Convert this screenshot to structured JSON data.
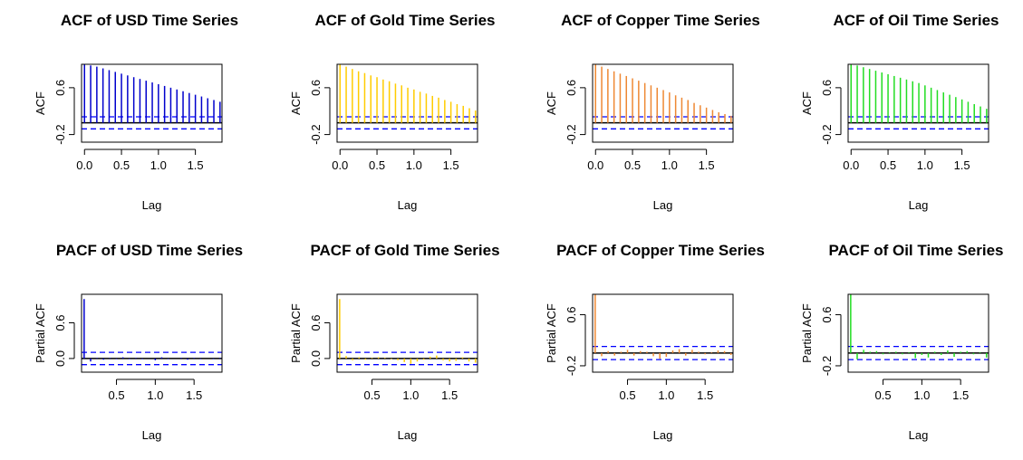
{
  "chart_data": [
    {
      "type": "bar",
      "title": "ACF of USD Time Series",
      "xlabel": "Lag",
      "ylabel": "ACF",
      "color": "#0000CC",
      "xticks": [
        "0.0",
        "0.5",
        "1.0",
        "1.5"
      ],
      "yticks": [
        "-0.2",
        "0.6"
      ],
      "xlim": [
        -0.04,
        1.86
      ],
      "ylim": [
        -0.33,
        1.0
      ],
      "ci": 0.103,
      "x": [
        0.0,
        0.0833,
        0.1667,
        0.25,
        0.3333,
        0.4167,
        0.5,
        0.5833,
        0.6667,
        0.75,
        0.8333,
        0.9167,
        1.0,
        1.0833,
        1.1667,
        1.25,
        1.3333,
        1.4167,
        1.5,
        1.5833,
        1.6667,
        1.75,
        1.8333
      ],
      "values": [
        1.0,
        0.98,
        0.96,
        0.93,
        0.9,
        0.87,
        0.84,
        0.81,
        0.78,
        0.75,
        0.72,
        0.69,
        0.66,
        0.63,
        0.6,
        0.57,
        0.54,
        0.51,
        0.48,
        0.45,
        0.42,
        0.39,
        0.36
      ]
    },
    {
      "type": "bar",
      "title": "ACF of Gold Time Series",
      "xlabel": "Lag",
      "ylabel": "ACF",
      "color": "#FFCC00",
      "xticks": [
        "0.0",
        "0.5",
        "1.0",
        "1.5"
      ],
      "yticks": [
        "-0.2",
        "0.6"
      ],
      "xlim": [
        -0.04,
        1.86
      ],
      "ylim": [
        -0.33,
        1.0
      ],
      "ci": 0.103,
      "x": [
        0.0,
        0.0833,
        0.1667,
        0.25,
        0.3333,
        0.4167,
        0.5,
        0.5833,
        0.6667,
        0.75,
        0.8333,
        0.9167,
        1.0,
        1.0833,
        1.1667,
        1.25,
        1.3333,
        1.4167,
        1.5,
        1.5833,
        1.6667,
        1.75,
        1.8333
      ],
      "values": [
        1.0,
        0.96,
        0.92,
        0.88,
        0.85,
        0.81,
        0.78,
        0.74,
        0.71,
        0.67,
        0.64,
        0.6,
        0.57,
        0.53,
        0.5,
        0.46,
        0.43,
        0.39,
        0.36,
        0.32,
        0.29,
        0.25,
        0.21
      ]
    },
    {
      "type": "bar",
      "title": "ACF of Copper Time Series",
      "xlabel": "Lag",
      "ylabel": "ACF",
      "color": "#EE8833",
      "xticks": [
        "0.0",
        "0.5",
        "1.0",
        "1.5"
      ],
      "yticks": [
        "-0.2",
        "0.6"
      ],
      "xlim": [
        -0.04,
        1.86
      ],
      "ylim": [
        -0.33,
        1.0
      ],
      "ci": 0.103,
      "x": [
        0.0,
        0.0833,
        0.1667,
        0.25,
        0.3333,
        0.4167,
        0.5,
        0.5833,
        0.6667,
        0.75,
        0.8333,
        0.9167,
        1.0,
        1.0833,
        1.1667,
        1.25,
        1.3333,
        1.4167,
        1.5,
        1.5833,
        1.6667,
        1.75,
        1.8333
      ],
      "values": [
        1.0,
        0.96,
        0.92,
        0.88,
        0.84,
        0.8,
        0.76,
        0.72,
        0.68,
        0.64,
        0.6,
        0.56,
        0.52,
        0.47,
        0.43,
        0.39,
        0.34,
        0.3,
        0.26,
        0.22,
        0.18,
        0.15,
        0.12
      ]
    },
    {
      "type": "bar",
      "title": "ACF of Oil Time Series",
      "xlabel": "Lag",
      "ylabel": "ACF",
      "color": "#22DD22",
      "xticks": [
        "0.0",
        "0.5",
        "1.0",
        "1.5"
      ],
      "yticks": [
        "-0.2",
        "0.6"
      ],
      "xlim": [
        -0.04,
        1.86
      ],
      "ylim": [
        -0.33,
        1.0
      ],
      "ci": 0.103,
      "x": [
        0.0,
        0.0833,
        0.1667,
        0.25,
        0.3333,
        0.4167,
        0.5,
        0.5833,
        0.6667,
        0.75,
        0.8333,
        0.9167,
        1.0,
        1.0833,
        1.1667,
        1.25,
        1.3333,
        1.4167,
        1.5,
        1.5833,
        1.6667,
        1.75,
        1.8333
      ],
      "values": [
        1.0,
        0.98,
        0.95,
        0.92,
        0.89,
        0.86,
        0.83,
        0.8,
        0.77,
        0.74,
        0.71,
        0.68,
        0.64,
        0.6,
        0.56,
        0.52,
        0.48,
        0.44,
        0.4,
        0.36,
        0.32,
        0.28,
        0.24
      ]
    },
    {
      "type": "bar",
      "title": "PACF of USD Time Series",
      "xlabel": "Lag",
      "ylabel": "Partial ACF",
      "color": "#0000CC",
      "xticks": [
        "0.5",
        "1.0",
        "1.5"
      ],
      "yticks": [
        "0.0",
        "0.6"
      ],
      "xlim": [
        0.05,
        1.86
      ],
      "ylim": [
        -0.23,
        1.08
      ],
      "ci": 0.103,
      "x": [
        0.0833,
        0.1667,
        0.25,
        0.3333,
        0.4167,
        0.5,
        0.5833,
        0.6667,
        0.75,
        0.8333,
        0.9167,
        1.0,
        1.0833,
        1.1667,
        1.25,
        1.3333,
        1.4167,
        1.5,
        1.5833,
        1.6667,
        1.75,
        1.8333
      ],
      "values": [
        1.0,
        -0.05,
        0.01,
        -0.02,
        0.01,
        -0.01,
        0.02,
        -0.01,
        0.01,
        -0.01,
        0.0,
        -0.03,
        0.02,
        -0.01,
        0.0,
        0.01,
        -0.02,
        0.01,
        -0.01,
        0.0,
        -0.01,
        0.01
      ]
    },
    {
      "type": "bar",
      "title": "PACF of Gold Time Series",
      "xlabel": "Lag",
      "ylabel": "Partial ACF",
      "color": "#FFCC00",
      "xticks": [
        "0.5",
        "1.0",
        "1.5"
      ],
      "yticks": [
        "0.0",
        "0.6"
      ],
      "xlim": [
        0.05,
        1.86
      ],
      "ylim": [
        -0.23,
        1.08
      ],
      "ci": 0.103,
      "x": [
        0.0833,
        0.1667,
        0.25,
        0.3333,
        0.4167,
        0.5,
        0.5833,
        0.6667,
        0.75,
        0.8333,
        0.9167,
        1.0,
        1.0833,
        1.1667,
        1.25,
        1.3333,
        1.4167,
        1.5,
        1.5833,
        1.6667,
        1.75,
        1.8333
      ],
      "values": [
        1.0,
        0.04,
        -0.03,
        0.02,
        -0.02,
        0.01,
        0.02,
        0.01,
        -0.01,
        -0.03,
        -0.06,
        -0.09,
        -0.05,
        -0.02,
        0.03,
        0.05,
        -0.03,
        -0.05,
        -0.04,
        0.02,
        -0.05,
        -0.07
      ]
    },
    {
      "type": "bar",
      "title": "PACF of Copper Time Series",
      "xlabel": "Lag",
      "ylabel": "Partial ACF",
      "color": "#EE8833",
      "xticks": [
        "0.5",
        "1.0",
        "1.5"
      ],
      "yticks": [
        "-0.2",
        "0.6"
      ],
      "xlim": [
        0.05,
        1.86
      ],
      "ylim": [
        -0.3,
        0.92
      ],
      "ci": 0.103,
      "x": [
        0.0833,
        0.1667,
        0.25,
        0.3333,
        0.4167,
        0.5,
        0.5833,
        0.6667,
        0.75,
        0.8333,
        0.9167,
        1.0,
        1.0833,
        1.1667,
        1.25,
        1.3333,
        1.4167,
        1.5,
        1.5833,
        1.6667,
        1.75,
        1.8333
      ],
      "values": [
        0.92,
        -0.05,
        0.03,
        -0.04,
        0.02,
        0.05,
        -0.04,
        0.03,
        0.02,
        -0.05,
        -0.09,
        -0.06,
        0.04,
        0.06,
        -0.04,
        0.05,
        0.02,
        -0.02,
        0.01,
        0.04,
        0.03,
        -0.03
      ]
    },
    {
      "type": "bar",
      "title": "PACF of Oil Time Series",
      "xlabel": "Lag",
      "ylabel": "Partial ACF",
      "color": "#22DD22",
      "xticks": [
        "0.5",
        "1.0",
        "1.5"
      ],
      "yticks": [
        "-0.2",
        "0.6"
      ],
      "xlim": [
        0.05,
        1.86
      ],
      "ylim": [
        -0.3,
        0.92
      ],
      "ci": 0.103,
      "x": [
        0.0833,
        0.1667,
        0.25,
        0.3333,
        0.4167,
        0.5,
        0.5833,
        0.6667,
        0.75,
        0.8333,
        0.9167,
        1.0,
        1.0833,
        1.1667,
        1.25,
        1.3333,
        1.4167,
        1.5,
        1.5833,
        1.6667,
        1.75,
        1.8333
      ],
      "values": [
        0.92,
        -0.1,
        0.05,
        0.02,
        0.03,
        -0.02,
        0.01,
        0.02,
        -0.02,
        0.01,
        -0.08,
        -0.03,
        -0.07,
        0.02,
        -0.03,
        0.04,
        -0.06,
        0.02,
        0.03,
        -0.02,
        0.01,
        -0.07
      ]
    }
  ]
}
